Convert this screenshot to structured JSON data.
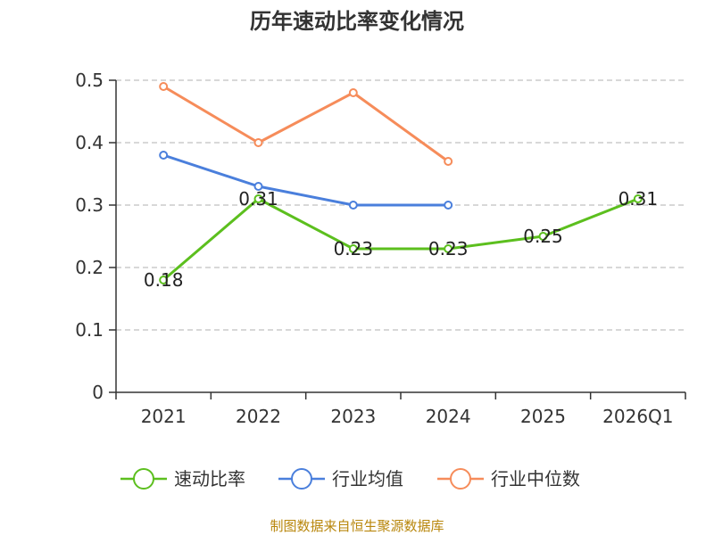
{
  "chart_data": {
    "type": "line",
    "title": "历年速动比率变化情况",
    "categories": [
      "2021",
      "2022",
      "2023",
      "2024",
      "2025",
      "2026Q1"
    ],
    "ylim": [
      0,
      0.5
    ],
    "yticks": [
      "0",
      "0.1",
      "0.2",
      "0.3",
      "0.4",
      "0.5"
    ],
    "ytick_values": [
      0,
      0.1,
      0.2,
      0.3,
      0.4,
      0.5
    ],
    "grid": true,
    "legend_position": "bottom",
    "series": [
      {
        "name": "速动比率",
        "color": "#5cbf1e",
        "values": [
          0.18,
          0.31,
          0.23,
          0.23,
          0.25,
          0.31
        ],
        "labels": [
          "0.18",
          "0.31",
          "0.23",
          "0.23",
          "0.25",
          "0.31"
        ]
      },
      {
        "name": "行业均值",
        "color": "#4a7fdc",
        "values": [
          0.38,
          0.33,
          0.3,
          0.3,
          null,
          null
        ]
      },
      {
        "name": "行业中位数",
        "color": "#f68c5a",
        "values": [
          0.49,
          0.4,
          0.48,
          0.37,
          null,
          null
        ]
      }
    ],
    "source": "制图数据来自恒生聚源数据库"
  }
}
